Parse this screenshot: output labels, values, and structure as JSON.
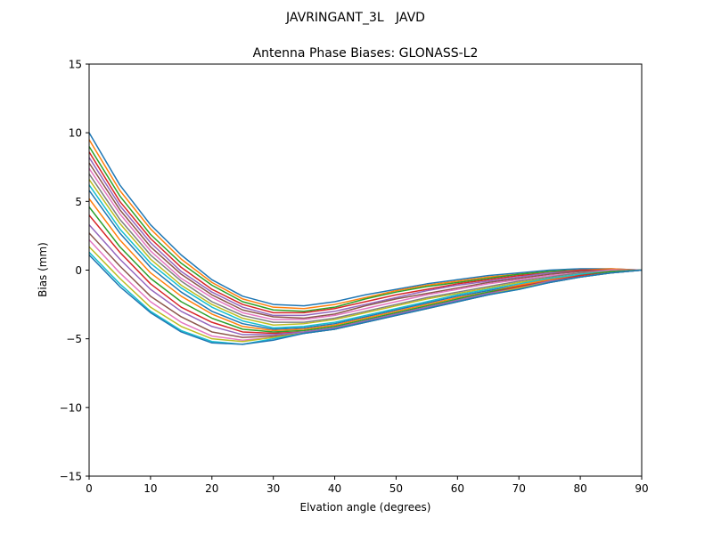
{
  "chart_data": {
    "type": "line",
    "suptitle": "JAVRINGANT_3L   JAVD",
    "title": "Antenna Phase Biases: GLONASS-L2",
    "xlabel": "Elvation angle (degrees)",
    "ylabel": "Bias (mm)",
    "xlim": [
      0,
      90
    ],
    "ylim": [
      -15,
      15
    ],
    "xticks": [
      0,
      10,
      20,
      30,
      40,
      50,
      60,
      70,
      80,
      90
    ],
    "yticks": [
      -15,
      -10,
      -5,
      0,
      5,
      10,
      15
    ],
    "xtick_labels": [
      "0",
      "10",
      "20",
      "30",
      "40",
      "50",
      "60",
      "70",
      "80",
      "90"
    ],
    "ytick_labels": [
      "−15",
      "−10",
      "−5",
      "0",
      "5",
      "10",
      "15"
    ],
    "grid": false,
    "x": [
      0,
      5,
      10,
      15,
      20,
      25,
      30,
      35,
      40,
      45,
      50,
      55,
      60,
      65,
      70,
      75,
      80,
      85,
      90
    ],
    "series": [
      {
        "color": "#1f77b4",
        "values": [
          10.0,
          6.2,
          3.3,
          1.1,
          -0.7,
          -1.9,
          -2.5,
          -2.6,
          -2.3,
          -1.8,
          -1.4,
          -1.0,
          -0.7,
          -0.4,
          -0.2,
          0.0,
          0.1,
          0.1,
          0.0
        ]
      },
      {
        "color": "#ff7f0e",
        "values": [
          9.5,
          5.8,
          3.0,
          0.8,
          -0.9,
          -2.1,
          -2.7,
          -2.8,
          -2.5,
          -2.0,
          -1.5,
          -1.1,
          -0.8,
          -0.5,
          -0.3,
          -0.1,
          0.0,
          0.1,
          0.0
        ]
      },
      {
        "color": "#2ca02c",
        "values": [
          9.0,
          5.4,
          2.6,
          0.5,
          -1.1,
          -2.3,
          -2.9,
          -3.0,
          -2.7,
          -2.1,
          -1.6,
          -1.2,
          -0.9,
          -0.6,
          -0.3,
          -0.1,
          0.0,
          0.0,
          0.0
        ]
      },
      {
        "color": "#d62728",
        "values": [
          8.6,
          5.0,
          2.3,
          0.2,
          -1.4,
          -2.5,
          -3.1,
          -3.1,
          -2.8,
          -2.3,
          -1.8,
          -1.4,
          -1.0,
          -0.7,
          -0.4,
          -0.2,
          0.0,
          0.0,
          0.0
        ]
      },
      {
        "color": "#9467bd",
        "values": [
          8.2,
          4.7,
          2.0,
          -0.1,
          -1.6,
          -2.7,
          -3.3,
          -3.3,
          -3.0,
          -2.5,
          -2.0,
          -1.5,
          -1.1,
          -0.8,
          -0.5,
          -0.2,
          -0.1,
          0.0,
          0.0
        ]
      },
      {
        "color": "#8c564b",
        "values": [
          7.8,
          4.4,
          1.7,
          -0.3,
          -1.8,
          -2.9,
          -3.4,
          -3.5,
          -3.2,
          -2.6,
          -2.1,
          -1.7,
          -1.3,
          -0.9,
          -0.6,
          -0.3,
          -0.1,
          0.0,
          0.0
        ]
      },
      {
        "color": "#e377c2",
        "values": [
          7.4,
          4.1,
          1.4,
          -0.6,
          -2.0,
          -3.1,
          -3.6,
          -3.6,
          -3.3,
          -2.8,
          -2.3,
          -1.8,
          -1.4,
          -1.0,
          -0.7,
          -0.4,
          -0.2,
          0.0,
          0.0
        ]
      },
      {
        "color": "#7f7f7f",
        "values": [
          7.0,
          3.7,
          1.1,
          -0.8,
          -2.3,
          -3.3,
          -3.8,
          -3.8,
          -3.5,
          -3.0,
          -2.5,
          -2.0,
          -1.6,
          -1.2,
          -0.8,
          -0.5,
          -0.2,
          -0.1,
          0.0
        ]
      },
      {
        "color": "#bcbd22",
        "values": [
          6.6,
          3.4,
          0.8,
          -1.1,
          -2.5,
          -3.5,
          -4.0,
          -3.9,
          -3.6,
          -3.1,
          -2.6,
          -2.1,
          -1.7,
          -1.3,
          -0.9,
          -0.6,
          -0.3,
          -0.1,
          0.0
        ]
      },
      {
        "color": "#17becf",
        "values": [
          6.2,
          3.0,
          0.5,
          -1.3,
          -2.7,
          -3.7,
          -4.2,
          -4.1,
          -3.8,
          -3.3,
          -2.8,
          -2.3,
          -1.8,
          -1.4,
          -1.0,
          -0.6,
          -0.3,
          -0.1,
          0.0
        ]
      },
      {
        "color": "#1f77b4",
        "values": [
          5.8,
          2.7,
          0.2,
          -1.6,
          -3.0,
          -3.9,
          -4.3,
          -4.2,
          -3.9,
          -3.4,
          -2.9,
          -2.4,
          -1.9,
          -1.5,
          -1.1,
          -0.7,
          -0.4,
          -0.1,
          0.0
        ]
      },
      {
        "color": "#ff7f0e",
        "values": [
          5.2,
          2.2,
          -0.2,
          -1.9,
          -3.2,
          -4.1,
          -4.4,
          -4.3,
          -4.0,
          -3.5,
          -3.0,
          -2.5,
          -2.0,
          -1.6,
          -1.1,
          -0.7,
          -0.4,
          -0.1,
          0.0
        ]
      },
      {
        "color": "#2ca02c",
        "values": [
          4.6,
          1.7,
          -0.6,
          -2.3,
          -3.5,
          -4.3,
          -4.5,
          -4.4,
          -4.1,
          -3.6,
          -3.1,
          -2.6,
          -2.1,
          -1.6,
          -1.2,
          -0.8,
          -0.4,
          -0.1,
          0.0
        ]
      },
      {
        "color": "#d62728",
        "values": [
          4.0,
          1.3,
          -1.0,
          -2.7,
          -3.8,
          -4.5,
          -4.6,
          -4.5,
          -4.2,
          -3.7,
          -3.2,
          -2.7,
          -2.2,
          -1.7,
          -1.2,
          -0.8,
          -0.4,
          -0.2,
          0.0
        ]
      },
      {
        "color": "#9467bd",
        "values": [
          3.3,
          0.8,
          -1.4,
          -3.0,
          -4.1,
          -4.7,
          -4.7,
          -4.5,
          -4.2,
          -3.7,
          -3.2,
          -2.7,
          -2.2,
          -1.7,
          -1.3,
          -0.8,
          -0.5,
          -0.2,
          0.0
        ]
      },
      {
        "color": "#8c564b",
        "values": [
          2.7,
          0.3,
          -1.9,
          -3.4,
          -4.5,
          -4.9,
          -4.8,
          -4.6,
          -4.3,
          -3.8,
          -3.3,
          -2.8,
          -2.3,
          -1.8,
          -1.3,
          -0.9,
          -0.5,
          -0.2,
          0.0
        ]
      },
      {
        "color": "#e377c2",
        "values": [
          2.2,
          -0.2,
          -2.3,
          -3.8,
          -4.8,
          -5.1,
          -4.9,
          -4.6,
          -4.3,
          -3.8,
          -3.3,
          -2.8,
          -2.3,
          -1.8,
          -1.3,
          -0.9,
          -0.5,
          -0.2,
          0.0
        ]
      },
      {
        "color": "#bcbd22",
        "values": [
          1.7,
          -0.6,
          -2.7,
          -4.1,
          -5.0,
          -5.2,
          -4.9,
          -4.6,
          -4.3,
          -3.8,
          -3.3,
          -2.8,
          -2.3,
          -1.8,
          -1.3,
          -0.9,
          -0.5,
          -0.2,
          0.0
        ]
      },
      {
        "color": "#17becf",
        "values": [
          1.3,
          -1.0,
          -3.0,
          -4.4,
          -5.2,
          -5.4,
          -5.0,
          -4.6,
          -4.3,
          -3.8,
          -3.3,
          -2.8,
          -2.3,
          -1.8,
          -1.4,
          -0.9,
          -0.5,
          -0.2,
          0.0
        ]
      },
      {
        "color": "#1f77b4",
        "values": [
          1.1,
          -1.2,
          -3.1,
          -4.5,
          -5.3,
          -5.4,
          -5.1,
          -4.6,
          -4.3,
          -3.8,
          -3.3,
          -2.8,
          -2.3,
          -1.8,
          -1.4,
          -0.9,
          -0.5,
          -0.2,
          0.0
        ]
      }
    ]
  }
}
